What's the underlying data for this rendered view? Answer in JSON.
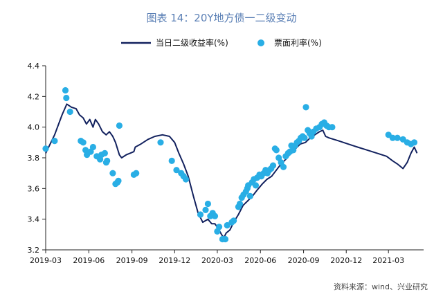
{
  "chart_data": {
    "type": "line+scatter",
    "title": "图表 14：20Y地方债一二级变动",
    "source": "资料来源：wind、兴业研究",
    "xlabel": "",
    "ylabel": "",
    "ylim": [
      3.2,
      4.4
    ],
    "yticks": [
      "3.2",
      "3.4",
      "3.6",
      "3.8",
      "4.0",
      "4.2",
      "4.4"
    ],
    "xlim": [
      "2019-03-01",
      "2021-05-15"
    ],
    "xticks": [
      {
        "date": "2019-03-01",
        "label": "2019-03"
      },
      {
        "date": "2019-06-01",
        "label": "2019-06"
      },
      {
        "date": "2019-09-01",
        "label": "2019-09"
      },
      {
        "date": "2019-12-01",
        "label": "2019-12"
      },
      {
        "date": "2020-03-01",
        "label": "2020-03"
      },
      {
        "date": "2020-06-01",
        "label": "2020-06"
      },
      {
        "date": "2020-09-01",
        "label": "2020-09"
      },
      {
        "date": "2020-12-01",
        "label": "2020-12"
      },
      {
        "date": "2021-03-01",
        "label": "2021-03"
      }
    ],
    "legend_position": "top",
    "grid": false,
    "series": [
      {
        "name": "当日二级收益率(%)",
        "type": "line",
        "color": "#12215e",
        "points": [
          [
            "2019-03-01",
            3.83
          ],
          [
            "2019-03-20",
            3.95
          ],
          [
            "2019-04-05",
            4.08
          ],
          [
            "2019-04-15",
            4.15
          ],
          [
            "2019-04-25",
            4.13
          ],
          [
            "2019-05-05",
            4.12
          ],
          [
            "2019-05-12",
            4.08
          ],
          [
            "2019-05-20",
            4.06
          ],
          [
            "2019-05-27",
            4.02
          ],
          [
            "2019-06-03",
            4.05
          ],
          [
            "2019-06-10",
            4.0
          ],
          [
            "2019-06-15",
            4.05
          ],
          [
            "2019-06-22",
            4.02
          ],
          [
            "2019-06-30",
            3.97
          ],
          [
            "2019-07-08",
            3.95
          ],
          [
            "2019-07-15",
            3.97
          ],
          [
            "2019-07-22",
            3.94
          ],
          [
            "2019-07-28",
            3.9
          ],
          [
            "2019-08-05",
            3.82
          ],
          [
            "2019-08-10",
            3.8
          ],
          [
            "2019-08-20",
            3.82
          ],
          [
            "2019-08-28",
            3.83
          ],
          [
            "2019-09-05",
            3.84
          ],
          [
            "2019-09-08",
            3.87
          ],
          [
            "2019-09-20",
            3.89
          ],
          [
            "2019-10-05",
            3.92
          ],
          [
            "2019-10-20",
            3.94
          ],
          [
            "2019-11-05",
            3.95
          ],
          [
            "2019-11-20",
            3.94
          ],
          [
            "2019-12-01",
            3.9
          ],
          [
            "2019-12-10",
            3.83
          ],
          [
            "2019-12-20",
            3.76
          ],
          [
            "2019-12-30",
            3.68
          ],
          [
            "2020-01-10",
            3.55
          ],
          [
            "2020-01-20",
            3.44
          ],
          [
            "2020-01-30",
            3.38
          ],
          [
            "2020-02-10",
            3.4
          ],
          [
            "2020-02-18",
            3.37
          ],
          [
            "2020-02-25",
            3.37
          ],
          [
            "2020-03-05",
            3.33
          ],
          [
            "2020-03-10",
            3.3
          ],
          [
            "2020-03-15",
            3.28
          ],
          [
            "2020-03-20",
            3.31
          ],
          [
            "2020-03-28",
            3.33
          ],
          [
            "2020-04-05",
            3.38
          ],
          [
            "2020-04-15",
            3.43
          ],
          [
            "2020-04-25",
            3.49
          ],
          [
            "2020-05-05",
            3.52
          ],
          [
            "2020-05-15",
            3.55
          ],
          [
            "2020-05-25",
            3.59
          ],
          [
            "2020-06-05",
            3.63
          ],
          [
            "2020-06-15",
            3.66
          ],
          [
            "2020-06-25",
            3.68
          ],
          [
            "2020-07-05",
            3.72
          ],
          [
            "2020-07-15",
            3.76
          ],
          [
            "2020-07-25",
            3.79
          ],
          [
            "2020-08-05",
            3.83
          ],
          [
            "2020-08-15",
            3.86
          ],
          [
            "2020-08-25",
            3.89
          ],
          [
            "2020-09-05",
            3.9
          ],
          [
            "2020-09-15",
            3.93
          ],
          [
            "2020-09-25",
            3.95
          ],
          [
            "2020-10-05",
            3.97
          ],
          [
            "2020-10-12",
            3.98
          ],
          [
            "2020-10-18",
            3.94
          ],
          [
            "2020-10-25",
            3.93
          ],
          [
            "2020-11-15",
            3.91
          ],
          [
            "2020-12-05",
            3.89
          ],
          [
            "2020-12-25",
            3.87
          ],
          [
            "2021-01-15",
            3.85
          ],
          [
            "2021-02-05",
            3.83
          ],
          [
            "2021-02-25",
            3.81
          ],
          [
            "2021-03-10",
            3.78
          ],
          [
            "2021-03-20",
            3.76
          ],
          [
            "2021-04-01",
            3.73
          ],
          [
            "2021-04-10",
            3.77
          ],
          [
            "2021-04-18",
            3.83
          ],
          [
            "2021-04-25",
            3.87
          ],
          [
            "2021-05-01",
            3.83
          ]
        ]
      },
      {
        "name": "票面利率(%)",
        "type": "scatter",
        "color": "#29aee5",
        "points": [
          [
            "2019-03-01",
            3.86
          ],
          [
            "2019-03-20",
            3.91
          ],
          [
            "2019-04-12",
            4.24
          ],
          [
            "2019-04-14",
            4.19
          ],
          [
            "2019-04-22",
            4.1
          ],
          [
            "2019-05-15",
            3.91
          ],
          [
            "2019-05-20",
            3.9
          ],
          [
            "2019-05-25",
            3.85
          ],
          [
            "2019-05-28",
            3.82
          ],
          [
            "2019-06-05",
            3.84
          ],
          [
            "2019-06-10",
            3.87
          ],
          [
            "2019-06-18",
            3.81
          ],
          [
            "2019-06-25",
            3.79
          ],
          [
            "2019-06-28",
            3.82
          ],
          [
            "2019-07-05",
            3.83
          ],
          [
            "2019-07-08",
            3.77
          ],
          [
            "2019-07-10",
            3.78
          ],
          [
            "2019-07-22",
            3.7
          ],
          [
            "2019-07-28",
            3.63
          ],
          [
            "2019-08-01",
            3.64
          ],
          [
            "2019-08-05",
            4.01
          ],
          [
            "2019-08-03",
            3.65
          ],
          [
            "2019-09-05",
            3.69
          ],
          [
            "2019-09-10",
            3.7
          ],
          [
            "2019-11-01",
            3.9
          ],
          [
            "2019-11-25",
            3.78
          ],
          [
            "2019-12-05",
            3.72
          ],
          [
            "2019-12-15",
            3.7
          ],
          [
            "2019-12-20",
            3.68
          ],
          [
            "2019-12-25",
            3.66
          ],
          [
            "2020-01-25",
            3.43
          ],
          [
            "2020-02-05",
            3.46
          ],
          [
            "2020-02-10",
            3.5
          ],
          [
            "2020-02-15",
            3.42
          ],
          [
            "2020-02-20",
            3.44
          ],
          [
            "2020-02-25",
            3.42
          ],
          [
            "2020-03-01",
            3.32
          ],
          [
            "2020-03-05",
            3.35
          ],
          [
            "2020-03-12",
            3.27
          ],
          [
            "2020-03-18",
            3.27
          ],
          [
            "2020-03-22",
            3.36
          ],
          [
            "2020-04-01",
            3.38
          ],
          [
            "2020-04-05",
            3.39
          ],
          [
            "2020-04-15",
            3.48
          ],
          [
            "2020-04-18",
            3.5
          ],
          [
            "2020-04-22",
            3.54
          ],
          [
            "2020-04-26",
            3.56
          ],
          [
            "2020-05-01",
            3.58
          ],
          [
            "2020-05-04",
            3.6
          ],
          [
            "2020-05-06",
            3.62
          ],
          [
            "2020-05-10",
            3.55
          ],
          [
            "2020-05-14",
            3.64
          ],
          [
            "2020-05-18",
            3.66
          ],
          [
            "2020-05-22",
            3.62
          ],
          [
            "2020-05-25",
            3.67
          ],
          [
            "2020-05-30",
            3.69
          ],
          [
            "2020-06-03",
            3.68
          ],
          [
            "2020-06-08",
            3.7
          ],
          [
            "2020-06-12",
            3.72
          ],
          [
            "2020-06-16",
            3.7
          ],
          [
            "2020-06-20",
            3.72
          ],
          [
            "2020-06-24",
            3.73
          ],
          [
            "2020-06-28",
            3.75
          ],
          [
            "2020-07-02",
            3.86
          ],
          [
            "2020-07-05",
            3.85
          ],
          [
            "2020-07-10",
            3.8
          ],
          [
            "2020-07-15",
            3.77
          ],
          [
            "2020-07-20",
            3.74
          ],
          [
            "2020-07-25",
            3.81
          ],
          [
            "2020-07-30",
            3.83
          ],
          [
            "2020-08-03",
            3.84
          ],
          [
            "2020-08-06",
            3.88
          ],
          [
            "2020-08-10",
            3.85
          ],
          [
            "2020-08-14",
            3.88
          ],
          [
            "2020-08-18",
            3.9
          ],
          [
            "2020-08-22",
            3.91
          ],
          [
            "2020-08-26",
            3.93
          ],
          [
            "2020-08-30",
            3.94
          ],
          [
            "2020-09-03",
            3.93
          ],
          [
            "2020-09-06",
            4.13
          ],
          [
            "2020-09-10",
            3.98
          ],
          [
            "2020-09-14",
            3.96
          ],
          [
            "2020-09-18",
            3.94
          ],
          [
            "2020-09-22",
            3.97
          ],
          [
            "2020-09-28",
            3.99
          ],
          [
            "2020-10-05",
            4.0
          ],
          [
            "2020-10-10",
            4.02
          ],
          [
            "2020-10-15",
            4.03
          ],
          [
            "2020-10-20",
            4.01
          ],
          [
            "2020-10-25",
            4.0
          ],
          [
            "2020-11-01",
            4.0
          ],
          [
            "2021-03-01",
            3.95
          ],
          [
            "2021-03-10",
            3.93
          ],
          [
            "2021-03-20",
            3.93
          ],
          [
            "2021-04-01",
            3.92
          ],
          [
            "2021-04-10",
            3.9
          ],
          [
            "2021-04-18",
            3.89
          ],
          [
            "2021-04-25",
            3.9
          ]
        ]
      }
    ]
  }
}
